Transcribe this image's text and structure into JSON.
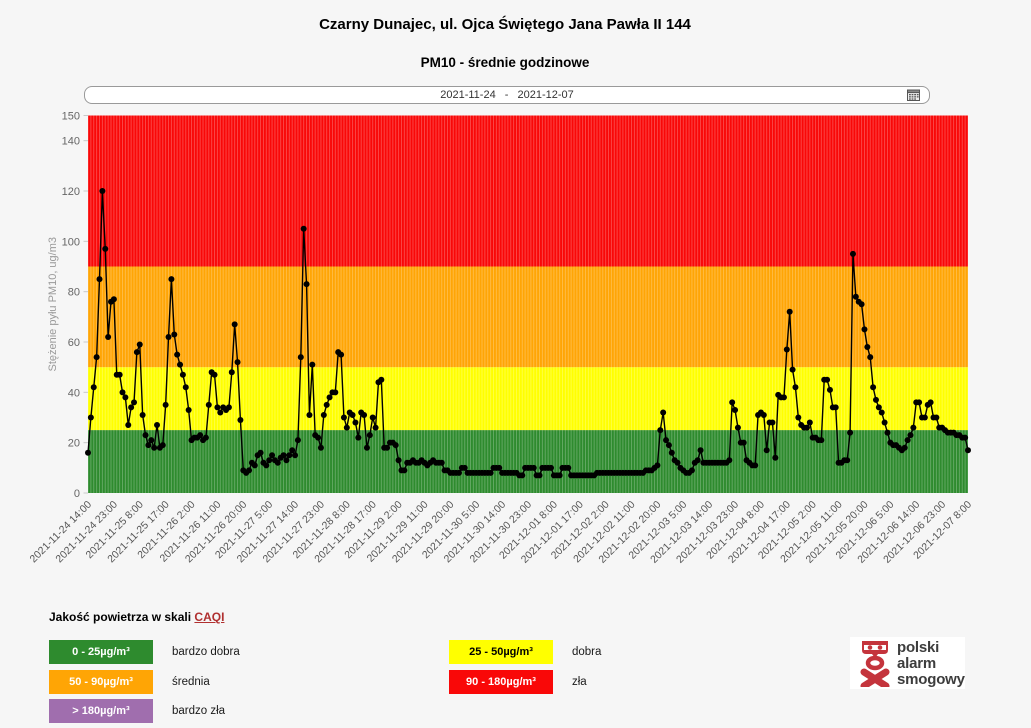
{
  "header": {
    "title": "Czarny Dunajec, ul. Ojca Świętego Jana Pawła II 144",
    "subtitle": "PM10 - średnie godzinowe"
  },
  "date_picker": {
    "value": "2021-11-24 - 2021-12-07",
    "icon": "calendar-icon"
  },
  "chart_data": {
    "type": "line",
    "title": "PM10 - średnie godzinowe",
    "ylabel": "Stężenie pyłu PM10, ug/m3",
    "ylim": [
      0,
      150
    ],
    "yticks": [
      0,
      20,
      40,
      60,
      80,
      100,
      120,
      140,
      150
    ],
    "x_start": "2021-11-24 14:00",
    "x_end": "2021-12-07 8:00",
    "x_step_hours": 1,
    "xtick_every_hours": 9,
    "xtick_labels": [
      "2021-11-24 14:00",
      "2021-11-24 23:00",
      "2021-11-25 8:00",
      "2021-11-25 17:00",
      "2021-11-26 2:00",
      "2021-11-26 11:00",
      "2021-11-26 20:00",
      "2021-11-27 5:00",
      "2021-11-27 14:00",
      "2021-11-27 23:00",
      "2021-11-28 8:00",
      "2021-11-28 17:00",
      "2021-11-29 2:00",
      "2021-11-29 11:00",
      "2021-11-29 20:00",
      "2021-11-30 5:00",
      "2021-11-30 14:00",
      "2021-11-30 23:00",
      "2021-12-01 8:00",
      "2021-12-01 17:00",
      "2021-12-02 2:00",
      "2021-12-02 11:00",
      "2021-12-02 20:00",
      "2021-12-03 5:00",
      "2021-12-03 14:00",
      "2021-12-03 23:00",
      "2021-12-04 8:00",
      "2021-12-04 17:00",
      "2021-12-05 2:00",
      "2021-12-05 11:00",
      "2021-12-05 20:00",
      "2021-12-06 5:00",
      "2021-12-06 14:00",
      "2021-12-06 23:00",
      "2021-12-07 8:00"
    ],
    "bands": [
      {
        "from": 0,
        "to": 25,
        "color": "#2e8b2e",
        "label": "bardzo dobra"
      },
      {
        "from": 25,
        "to": 50,
        "color": "#ffff00",
        "label": "dobra"
      },
      {
        "from": 50,
        "to": 90,
        "color": "#ffa505",
        "label": "średnia"
      },
      {
        "from": 90,
        "to": 150,
        "color": "#f90808",
        "label": "zła"
      }
    ],
    "grid": "hourly vertical, white 25%",
    "series": [
      {
        "name": "PM10 średnie godzinowe",
        "color": "#000000",
        "values": [
          16,
          30,
          42,
          54,
          85,
          120,
          97,
          62,
          76,
          77,
          47,
          47,
          40,
          38,
          27,
          34,
          36,
          56,
          59,
          31,
          23,
          19,
          21,
          18,
          27,
          18,
          19,
          35,
          62,
          85,
          63,
          55,
          51,
          47,
          42,
          33,
          21,
          22,
          22,
          23,
          21,
          22,
          35,
          48,
          47,
          34,
          32,
          34,
          33,
          34,
          48,
          67,
          52,
          29,
          9,
          8,
          9,
          12,
          11,
          15,
          16,
          12,
          11,
          13,
          15,
          13,
          12,
          14,
          15,
          13,
          15,
          17,
          15,
          21,
          54,
          105,
          83,
          31,
          51,
          23,
          22,
          18,
          31,
          35,
          38,
          40,
          40,
          56,
          55,
          30,
          26,
          32,
          31,
          28,
          22,
          32,
          31,
          18,
          23,
          30,
          26,
          44,
          45,
          18,
          18,
          20,
          20,
          19,
          13,
          9,
          9,
          12,
          12,
          13,
          12,
          12,
          13,
          12,
          11,
          12,
          13,
          12,
          12,
          12,
          9,
          9,
          8,
          8,
          8,
          8,
          10,
          10,
          8,
          8,
          8,
          8,
          8,
          8,
          8,
          8,
          8,
          10,
          10,
          10,
          8,
          8,
          8,
          8,
          8,
          8,
          7,
          7,
          10,
          10,
          10,
          10,
          7,
          7,
          10,
          10,
          10,
          10,
          7,
          7,
          7,
          10,
          10,
          10,
          7,
          7,
          7,
          7,
          7,
          7,
          7,
          7,
          7,
          8,
          8,
          8,
          8,
          8,
          8,
          8,
          8,
          8,
          8,
          8,
          8,
          8,
          8,
          8,
          8,
          8,
          9,
          9,
          9,
          10,
          11,
          25,
          32,
          21,
          19,
          16,
          13,
          12,
          10,
          9,
          8,
          8,
          9,
          12,
          13,
          17,
          12,
          12,
          12,
          12,
          12,
          12,
          12,
          12,
          12,
          13,
          36,
          33,
          26,
          20,
          20,
          13,
          12,
          11,
          11,
          31,
          32,
          31,
          17,
          28,
          28,
          14,
          39,
          38,
          38,
          57,
          72,
          49,
          42,
          30,
          27,
          26,
          26,
          28,
          22,
          22,
          21,
          21,
          45,
          45,
          41,
          34,
          34,
          12,
          12,
          13,
          13,
          24,
          95,
          78,
          76,
          75,
          65,
          58,
          54,
          42,
          37,
          34,
          32,
          28,
          24,
          20,
          19,
          19,
          18,
          17,
          18,
          21,
          23,
          26,
          36,
          36,
          30,
          30,
          35,
          36,
          30,
          30,
          26,
          26,
          25,
          24,
          24,
          24,
          23,
          23,
          22,
          22,
          17
        ]
      }
    ]
  },
  "caqi_legend": {
    "heading": "Jakość powietrza w skali",
    "link_label": "CAQI",
    "link_color": "#b03030",
    "col1": [
      {
        "range": "0 - 25µg/m³",
        "label": "bardzo dobra",
        "color": "#2e8b2e",
        "text_color": "#ffffff"
      },
      {
        "range": "50 - 90µg/m³",
        "label": "średnia",
        "color": "#ffa505",
        "text_color": "#ffffff"
      },
      {
        "range": "> 180µg/m³",
        "label": "bardzo zła",
        "color": "#a06eae",
        "text_color": "#ffffff"
      }
    ],
    "col2": [
      {
        "range": "25 - 50µg/m³",
        "label": "dobra",
        "color": "#ffff00",
        "text_color": "#000000"
      },
      {
        "range": "90 - 180µg/m³",
        "label": "zła",
        "color": "#f90808",
        "text_color": "#ffffff"
      }
    ]
  },
  "logo": {
    "line1": "polski",
    "line2": "alarm",
    "line3": "smogowy",
    "icon_color": "#c4343c"
  }
}
